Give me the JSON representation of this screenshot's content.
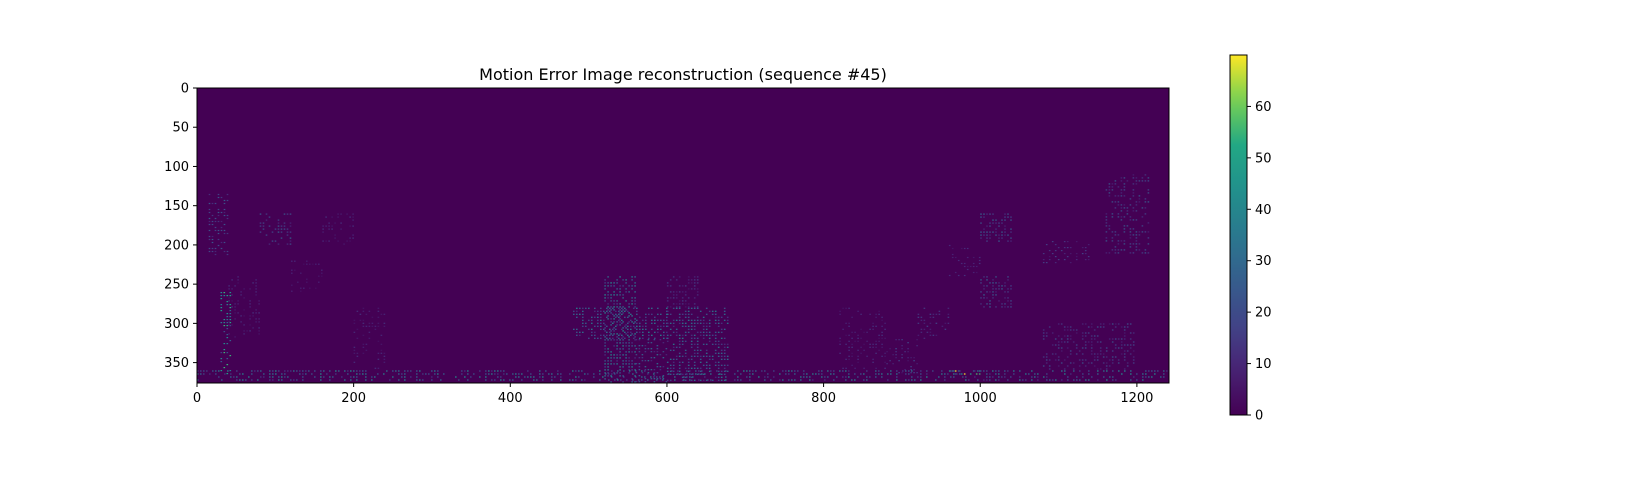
{
  "chart_data": {
    "type": "heatmap",
    "title": "Motion Error Image reconstruction (sequence #45)",
    "xlabel": "",
    "ylabel": "",
    "xlim": [
      0,
      1241
    ],
    "ylim": [
      376,
      0
    ],
    "x_ticks": [
      0,
      200,
      400,
      600,
      800,
      1000,
      1200
    ],
    "y_ticks": [
      0,
      50,
      100,
      150,
      200,
      250,
      300,
      350
    ],
    "colormap": "viridis",
    "background_value": 0,
    "colorbar": {
      "range": [
        0,
        70
      ],
      "ticks": [
        0,
        10,
        20,
        30,
        40,
        50,
        60
      ]
    },
    "regions": [
      {
        "x": [
          520,
          560
        ],
        "y": [
          240,
          375
        ],
        "value": 35,
        "density": 0.6
      },
      {
        "x": [
          600,
          640
        ],
        "y": [
          240,
          280
        ],
        "value": 14,
        "density": 0.5
      },
      {
        "x": [
          480,
          600
        ],
        "y": [
          280,
          320
        ],
        "value": 32,
        "density": 0.55
      },
      {
        "x": [
          600,
          680
        ],
        "y": [
          280,
          375
        ],
        "value": 30,
        "density": 0.55
      },
      {
        "x": [
          560,
          600
        ],
        "y": [
          320,
          375
        ],
        "value": 26,
        "density": 0.45
      },
      {
        "x": [
          15,
          40
        ],
        "y": [
          135,
          215
        ],
        "value": 20,
        "density": 0.45
      },
      {
        "x": [
          30,
          45
        ],
        "y": [
          260,
          365
        ],
        "value": 45,
        "density": 0.5
      },
      {
        "x": [
          80,
          120
        ],
        "y": [
          160,
          200
        ],
        "value": 22,
        "density": 0.35
      },
      {
        "x": [
          1000,
          1040
        ],
        "y": [
          160,
          195
        ],
        "value": 22,
        "density": 0.5
      },
      {
        "x": [
          1000,
          1040
        ],
        "y": [
          240,
          280
        ],
        "value": 22,
        "density": 0.5
      },
      {
        "x": [
          1160,
          1215
        ],
        "y": [
          110,
          210
        ],
        "value": 20,
        "density": 0.35
      },
      {
        "x": [
          1080,
          1195
        ],
        "y": [
          300,
          360
        ],
        "value": 18,
        "density": 0.35
      },
      {
        "x": [
          1080,
          1140
        ],
        "y": [
          195,
          225
        ],
        "value": 14,
        "density": 0.35
      },
      {
        "x": [
          920,
          960
        ],
        "y": [
          280,
          320
        ],
        "value": 14,
        "density": 0.3
      },
      {
        "x": [
          40,
          80
        ],
        "y": [
          240,
          320
        ],
        "value": 10,
        "density": 0.3
      },
      {
        "x": [
          160,
          200
        ],
        "y": [
          160,
          200
        ],
        "value": 10,
        "density": 0.25
      },
      {
        "x": [
          120,
          160
        ],
        "y": [
          220,
          260
        ],
        "value": 8,
        "density": 0.25
      },
      {
        "x": [
          200,
          240
        ],
        "y": [
          280,
          360
        ],
        "value": 10,
        "density": 0.25
      },
      {
        "x": [
          820,
          880
        ],
        "y": [
          280,
          360
        ],
        "value": 10,
        "density": 0.25
      },
      {
        "x": [
          880,
          920
        ],
        "y": [
          320,
          365
        ],
        "value": 14,
        "density": 0.3
      },
      {
        "x": [
          960,
          1000
        ],
        "y": [
          200,
          240
        ],
        "value": 10,
        "density": 0.25
      },
      {
        "x": [
          0,
          1241
        ],
        "y": [
          360,
          372
        ],
        "value": 35,
        "density": 0.45
      },
      {
        "x": [
          960,
          1000
        ],
        "y": [
          360,
          366
        ],
        "value": 65,
        "density": 0.4
      }
    ]
  }
}
